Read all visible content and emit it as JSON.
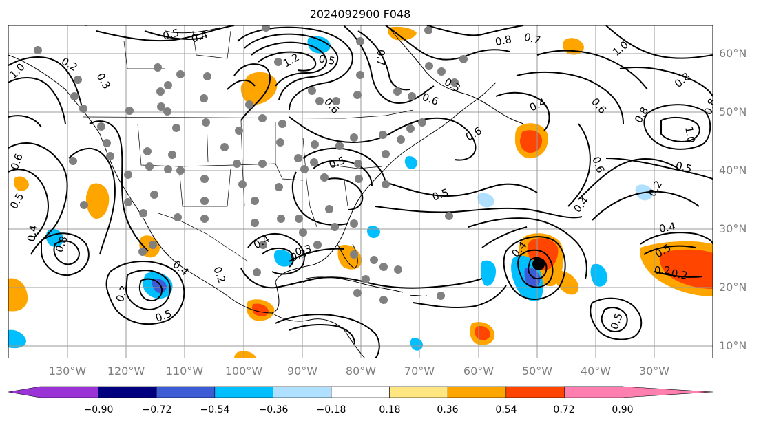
{
  "title": "2024092900 F048",
  "lat_labels": [
    "60°N",
    "50°N",
    "40°N",
    "30°N",
    "20°N",
    "10°N"
  ],
  "lon_labels": [
    "130°W",
    "120°W",
    "110°W",
    "100°W",
    "90°W",
    "80°W",
    "70°W",
    "60°W",
    "50°W",
    "40°W",
    "30°W"
  ],
  "colorbar": {
    "ticks": [
      "−0.90",
      "−0.72",
      "−0.54",
      "−0.36",
      "−0.18",
      "0.18",
      "0.36",
      "0.54",
      "0.72",
      "0.90"
    ],
    "colors": [
      "#9a34d6",
      "#00007f",
      "#3c5bd4",
      "#00bfff",
      "#b0e0ff",
      "#ffffff",
      "#ffe680",
      "#ffa500",
      "#ff4500",
      "#b22222",
      "#ff80b0"
    ]
  },
  "contour_labels": [
    "0.5",
    "0.4",
    "0.2",
    "0.3",
    "1.0",
    "1.2",
    "0.6",
    "0.7",
    "0.8",
    "0.5",
    "0.6",
    "0.4",
    "0.3",
    "0.8",
    "1.0",
    "0.5",
    "0.6",
    "0.8",
    "0.4",
    "0.3",
    "0.4",
    "0.2",
    "0.5",
    "0.3",
    "0.4",
    "0.5",
    "0.2",
    "0.6",
    "0.4",
    "0.5",
    "0.8",
    "0.7",
    "1.0",
    "0.2",
    "0.4",
    "0.5",
    "0.6",
    "0.4",
    "0.5",
    "0.3",
    "0.2",
    "0.5",
    "0.8",
    "0.6"
  ],
  "colors": {
    "contour": "#000000",
    "gridline": "#9a9a9a",
    "station": "#808080",
    "storm": "#000000"
  }
}
